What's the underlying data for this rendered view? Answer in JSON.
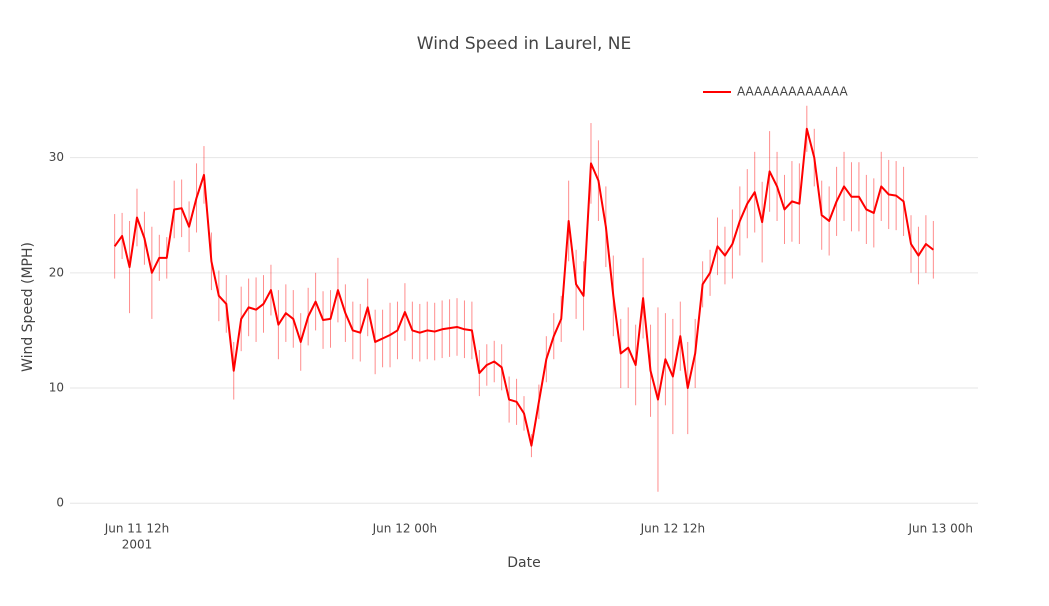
{
  "chart_data": {
    "type": "line",
    "title": "Wind Speed in Laurel, NE",
    "x_label": "Date",
    "y_label": "Wind Speed (MPH)",
    "x_year": "2001",
    "legend": "top-right",
    "grid": true,
    "xlim": [
      "2001-06-11 09:00",
      "2001-06-13 01:40"
    ],
    "ylim": [
      -0.5,
      35
    ],
    "yticks": [
      0,
      10,
      20,
      30
    ],
    "xticks": [
      {
        "value": "2001-06-11 12:00",
        "label": "Jun 11 12h"
      },
      {
        "value": "2001-06-12 00:00",
        "label": "Jun 12 00h"
      },
      {
        "value": "2001-06-12 12:00",
        "label": "Jun 12 12h"
      },
      {
        "value": "2001-06-13 00:00",
        "label": "Jun 13 00h"
      }
    ],
    "x": [
      "2001-06-11 11:00",
      "2001-06-11 11:20",
      "2001-06-11 11:40",
      "2001-06-11 12:00",
      "2001-06-11 12:20",
      "2001-06-11 12:40",
      "2001-06-11 13:00",
      "2001-06-11 13:20",
      "2001-06-11 13:40",
      "2001-06-11 14:00",
      "2001-06-11 14:20",
      "2001-06-11 14:40",
      "2001-06-11 15:00",
      "2001-06-11 15:20",
      "2001-06-11 15:40",
      "2001-06-11 16:00",
      "2001-06-11 16:20",
      "2001-06-11 16:40",
      "2001-06-11 17:00",
      "2001-06-11 17:20",
      "2001-06-11 17:40",
      "2001-06-11 18:00",
      "2001-06-11 18:20",
      "2001-06-11 18:40",
      "2001-06-11 19:00",
      "2001-06-11 19:20",
      "2001-06-11 19:40",
      "2001-06-11 20:00",
      "2001-06-11 20:20",
      "2001-06-11 20:40",
      "2001-06-11 21:00",
      "2001-06-11 21:20",
      "2001-06-11 21:40",
      "2001-06-11 22:00",
      "2001-06-11 22:20",
      "2001-06-11 22:40",
      "2001-06-11 23:00",
      "2001-06-11 23:20",
      "2001-06-11 23:40",
      "2001-06-12 00:00",
      "2001-06-12 00:20",
      "2001-06-12 00:40",
      "2001-06-12 01:00",
      "2001-06-12 01:20",
      "2001-06-12 01:40",
      "2001-06-12 02:00",
      "2001-06-12 02:20",
      "2001-06-12 02:40",
      "2001-06-12 03:00",
      "2001-06-12 03:20",
      "2001-06-12 03:40",
      "2001-06-12 04:00",
      "2001-06-12 04:20",
      "2001-06-12 04:40",
      "2001-06-12 05:00",
      "2001-06-12 05:20",
      "2001-06-12 05:40",
      "2001-06-12 06:00",
      "2001-06-12 06:20",
      "2001-06-12 06:40",
      "2001-06-12 07:00",
      "2001-06-12 07:20",
      "2001-06-12 07:40",
      "2001-06-12 08:00",
      "2001-06-12 08:20",
      "2001-06-12 08:40",
      "2001-06-12 09:00",
      "2001-06-12 09:20",
      "2001-06-12 09:40",
      "2001-06-12 10:00",
      "2001-06-12 10:20",
      "2001-06-12 10:40",
      "2001-06-12 11:00",
      "2001-06-12 11:20",
      "2001-06-12 11:40",
      "2001-06-12 12:00",
      "2001-06-12 12:20",
      "2001-06-12 12:40",
      "2001-06-12 13:00",
      "2001-06-12 13:20",
      "2001-06-12 13:40",
      "2001-06-12 14:00",
      "2001-06-12 14:20",
      "2001-06-12 14:40",
      "2001-06-12 15:00",
      "2001-06-12 15:20",
      "2001-06-12 15:40",
      "2001-06-12 16:00",
      "2001-06-12 16:20",
      "2001-06-12 16:40",
      "2001-06-12 17:00",
      "2001-06-12 17:20",
      "2001-06-12 17:40",
      "2001-06-12 18:00",
      "2001-06-12 18:20",
      "2001-06-12 18:40",
      "2001-06-12 19:00",
      "2001-06-12 19:20",
      "2001-06-12 19:40",
      "2001-06-12 20:00",
      "2001-06-12 20:20",
      "2001-06-12 20:40",
      "2001-06-12 21:00",
      "2001-06-12 21:20",
      "2001-06-12 21:40",
      "2001-06-12 22:00",
      "2001-06-12 22:20",
      "2001-06-12 22:40",
      "2001-06-12 23:00",
      "2001-06-12 23:20",
      "2001-06-12 23:40"
    ],
    "series": [
      {
        "name": "AAAAAAAAAAAAA",
        "color": "#ff0000",
        "values": [
          22.3,
          23.2,
          20.5,
          24.8,
          23,
          20,
          21.3,
          21.3,
          25.5,
          25.6,
          24,
          26.5,
          28.5,
          21,
          18,
          17.3,
          11.5,
          16,
          17,
          16.8,
          17.3,
          18.5,
          15.5,
          16.5,
          16,
          14,
          16.2,
          17.5,
          15.9,
          16,
          18.5,
          16.5,
          15,
          14.8,
          17,
          14,
          14.3,
          14.6,
          15,
          16.6,
          15,
          14.8,
          15,
          14.9,
          15.1,
          15.2,
          15.3,
          15.1,
          15,
          11.3,
          12,
          12.3,
          11.8,
          9,
          8.8,
          7.8,
          5,
          8.8,
          12.5,
          14.5,
          16,
          24.5,
          19,
          18,
          29.5,
          28,
          24,
          18,
          13,
          13.5,
          12,
          17.8,
          11.5,
          9,
          12.5,
          11,
          14.5,
          10,
          13,
          19,
          20,
          22.3,
          21.5,
          22.5,
          24.5,
          26,
          27,
          24.4,
          28.8,
          27.5,
          25.5,
          26.2,
          26,
          32.5,
          30,
          25,
          24.5,
          26.2,
          27.5,
          26.6,
          26.6,
          25.5,
          25.2,
          27.5,
          26.8,
          26.7,
          26.2,
          22.5,
          21.5,
          22.5,
          22
        ],
        "errors": [
          2.8,
          2,
          4,
          2.5,
          2.3,
          4,
          2,
          1.8,
          2.5,
          2.5,
          2.2,
          3,
          2.5,
          2.5,
          2.2,
          2.5,
          2.5,
          2.8,
          2.5,
          2.8,
          2.5,
          2.2,
          3,
          2.5,
          2.5,
          2.5,
          2.5,
          2.5,
          2.5,
          2.5,
          2.8,
          2.5,
          2.5,
          2.5,
          2.5,
          2.8,
          2.5,
          2.8,
          2.5,
          2.5,
          2.5,
          2.5,
          2.5,
          2.5,
          2.5,
          2.5,
          2.5,
          2.5,
          2.5,
          2,
          1.8,
          1.8,
          2,
          2,
          2,
          1.5,
          1,
          1.5,
          2,
          2,
          2,
          3.5,
          3,
          3,
          3.5,
          3.5,
          3.5,
          3.5,
          3,
          3.5,
          3.5,
          3.5,
          4,
          8,
          4,
          5,
          3,
          4,
          3,
          2,
          2,
          2.5,
          2.5,
          3,
          3,
          3,
          3.5,
          3.5,
          3.5,
          3,
          3,
          3.5,
          3.5,
          2,
          2.5,
          3,
          3,
          3,
          3,
          3,
          3,
          3,
          3,
          3,
          3,
          3,
          3,
          2.5,
          2.5,
          2.5,
          2.5
        ]
      }
    ]
  }
}
